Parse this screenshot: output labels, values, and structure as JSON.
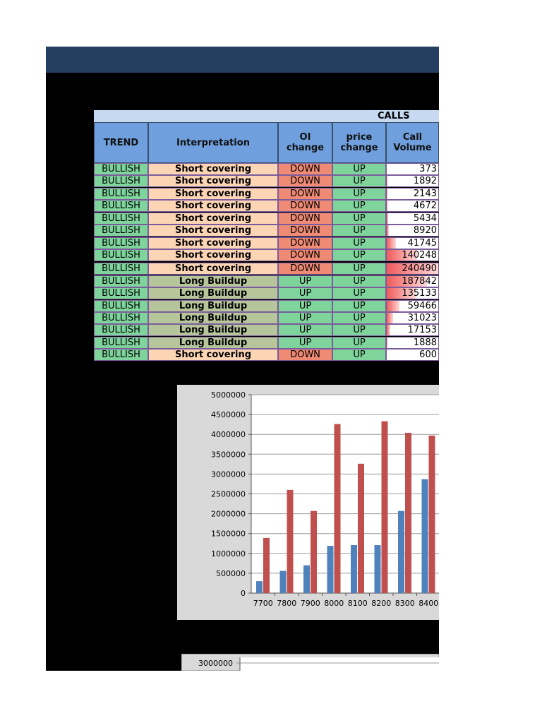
{
  "section_label": "CALLS",
  "headers": {
    "trend": "TREND",
    "interpretation": "Interpretation",
    "oi_change": [
      "OI",
      "change"
    ],
    "price_change": [
      "price",
      "change"
    ],
    "call_volume": [
      "Call",
      "Volume"
    ]
  },
  "rows": [
    {
      "trend": "BULLISH",
      "interpretation": "Short covering",
      "oi": "DOWN",
      "price": "UP",
      "volume": "373"
    },
    {
      "trend": "BULLISH",
      "interpretation": "Short covering",
      "oi": "DOWN",
      "price": "UP",
      "volume": "1892"
    },
    {
      "trend": "BULLISH",
      "interpretation": "Short covering",
      "oi": "DOWN",
      "price": "UP",
      "volume": "2143"
    },
    {
      "trend": "BULLISH",
      "interpretation": "Short covering",
      "oi": "DOWN",
      "price": "UP",
      "volume": "4672"
    },
    {
      "trend": "BULLISH",
      "interpretation": "Short covering",
      "oi": "DOWN",
      "price": "UP",
      "volume": "5434"
    },
    {
      "trend": "BULLISH",
      "interpretation": "Short covering",
      "oi": "DOWN",
      "price": "UP",
      "volume": "8920"
    },
    {
      "trend": "BULLISH",
      "interpretation": "Short covering",
      "oi": "DOWN",
      "price": "UP",
      "volume": "41745"
    },
    {
      "trend": "BULLISH",
      "interpretation": "Short covering",
      "oi": "DOWN",
      "price": "UP",
      "volume": "140248"
    },
    {
      "trend": "BULLISH",
      "interpretation": "Short covering",
      "oi": "DOWN",
      "price": "UP",
      "volume": "240490"
    },
    {
      "trend": "BULLISH",
      "interpretation": "Long Buildup",
      "oi": "UP",
      "price": "UP",
      "volume": "187842"
    },
    {
      "trend": "BULLISH",
      "interpretation": "Long Buildup",
      "oi": "UP",
      "price": "UP",
      "volume": "135133"
    },
    {
      "trend": "BULLISH",
      "interpretation": "Long Buildup",
      "oi": "UP",
      "price": "UP",
      "volume": "59466"
    },
    {
      "trend": "BULLISH",
      "interpretation": "Long Buildup",
      "oi": "UP",
      "price": "UP",
      "volume": "31023"
    },
    {
      "trend": "BULLISH",
      "interpretation": "Long Buildup",
      "oi": "UP",
      "price": "UP",
      "volume": "17153"
    },
    {
      "trend": "BULLISH",
      "interpretation": "Long Buildup",
      "oi": "UP",
      "price": "UP",
      "volume": "1888"
    },
    {
      "trend": "BULLISH",
      "interpretation": "Short covering",
      "oi": "DOWN",
      "price": "UP",
      "volume": "600"
    }
  ],
  "colors": {
    "header_bar": "#243f60",
    "bullish": "#7fd49c",
    "short_covering": "#fcd5b4",
    "long_buildup": "#b6c59a",
    "down": "#ef8a74",
    "header_cells": "#6f9fdc",
    "volume_bar": "#f05a5a"
  },
  "chart_data": [
    {
      "type": "bar",
      "categories": [
        "7700",
        "7800",
        "7900",
        "8000",
        "8100",
        "8200",
        "8300",
        "8400"
      ],
      "series": [
        {
          "color": "#4f81bd",
          "values": [
            300000,
            560000,
            700000,
            1190000,
            1210000,
            1210000,
            2070000,
            2870000
          ]
        },
        {
          "color": "#c0504d",
          "values": [
            1390000,
            2600000,
            2070000,
            4260000,
            3260000,
            4330000,
            4040000,
            3970000
          ]
        }
      ],
      "ylim": [
        0,
        5000000
      ],
      "yticks": [
        0,
        500000,
        1000000,
        1500000,
        2000000,
        2500000,
        3000000,
        3500000,
        4000000,
        4500000,
        5000000
      ],
      "grid": true,
      "title": "",
      "xlabel": "",
      "ylabel": ""
    },
    {
      "type": "bar",
      "visible_tick_labels": [
        "3000000"
      ]
    }
  ]
}
